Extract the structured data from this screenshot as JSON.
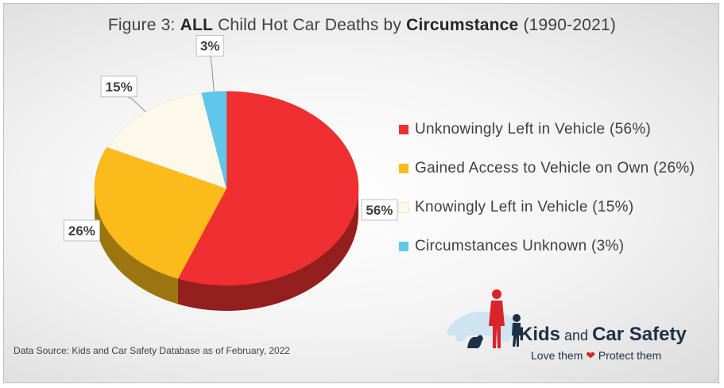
{
  "title": {
    "prefix": "Figure 3: ",
    "bold1": "ALL",
    "middle": " Child Hot Car Deaths by ",
    "bold2": "Circumstance",
    "suffix": " (1990-2021)"
  },
  "chart_data": {
    "type": "pie",
    "title": "Figure 3: ALL Child Hot Car Deaths by Circumstance (1990-2021)",
    "slices": [
      {
        "label": "Unknowingly Left in Vehicle (56%)",
        "value": 56,
        "data_label": "56%",
        "color": "#f03030"
      },
      {
        "label": "Gained Access to Vehicle on Own (26%)",
        "value": 26,
        "data_label": "26%",
        "color": "#fbbc1b"
      },
      {
        "label": "Knowingly Left in Vehicle (15%)",
        "value": 15,
        "data_label": "15%",
        "color": "#fdf9ea"
      },
      {
        "label": "Circumstances Unknown (3%)",
        "value": 3,
        "data_label": "3%",
        "color": "#5fc8ea"
      }
    ],
    "legend_position": "right"
  },
  "source": "Data Source: Kids and Car Safety Database as of February, 2022",
  "logo": {
    "kids": "Kids",
    "and": " and ",
    "car_safety": "Car Safety",
    "tagline_left": "Love them ",
    "heart": "❤",
    "tagline_right": " Protect them"
  }
}
